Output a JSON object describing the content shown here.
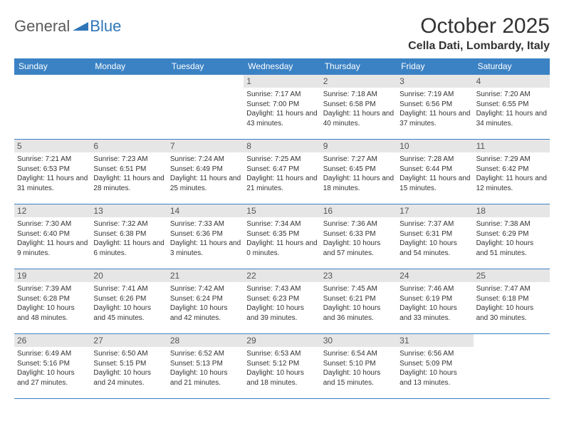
{
  "logo": {
    "text1": "General",
    "text2": "Blue",
    "accent_color": "#2f76b8",
    "text_color": "#5a5a5a"
  },
  "title": "October 2025",
  "location": "Cella Dati, Lombardy, Italy",
  "header_bg": "#3b82c4",
  "header_fg": "#ffffff",
  "daynum_bg": "#e6e6e6",
  "grid_line_color": "#3b82c4",
  "days_of_week": [
    "Sunday",
    "Monday",
    "Tuesday",
    "Wednesday",
    "Thursday",
    "Friday",
    "Saturday"
  ],
  "weeks": [
    [
      {
        "day": "",
        "sunrise": "",
        "sunset": "",
        "daylight": ""
      },
      {
        "day": "",
        "sunrise": "",
        "sunset": "",
        "daylight": ""
      },
      {
        "day": "",
        "sunrise": "",
        "sunset": "",
        "daylight": ""
      },
      {
        "day": "1",
        "sunrise": "Sunrise: 7:17 AM",
        "sunset": "Sunset: 7:00 PM",
        "daylight": "Daylight: 11 hours and 43 minutes."
      },
      {
        "day": "2",
        "sunrise": "Sunrise: 7:18 AM",
        "sunset": "Sunset: 6:58 PM",
        "daylight": "Daylight: 11 hours and 40 minutes."
      },
      {
        "day": "3",
        "sunrise": "Sunrise: 7:19 AM",
        "sunset": "Sunset: 6:56 PM",
        "daylight": "Daylight: 11 hours and 37 minutes."
      },
      {
        "day": "4",
        "sunrise": "Sunrise: 7:20 AM",
        "sunset": "Sunset: 6:55 PM",
        "daylight": "Daylight: 11 hours and 34 minutes."
      }
    ],
    [
      {
        "day": "5",
        "sunrise": "Sunrise: 7:21 AM",
        "sunset": "Sunset: 6:53 PM",
        "daylight": "Daylight: 11 hours and 31 minutes."
      },
      {
        "day": "6",
        "sunrise": "Sunrise: 7:23 AM",
        "sunset": "Sunset: 6:51 PM",
        "daylight": "Daylight: 11 hours and 28 minutes."
      },
      {
        "day": "7",
        "sunrise": "Sunrise: 7:24 AM",
        "sunset": "Sunset: 6:49 PM",
        "daylight": "Daylight: 11 hours and 25 minutes."
      },
      {
        "day": "8",
        "sunrise": "Sunrise: 7:25 AM",
        "sunset": "Sunset: 6:47 PM",
        "daylight": "Daylight: 11 hours and 21 minutes."
      },
      {
        "day": "9",
        "sunrise": "Sunrise: 7:27 AM",
        "sunset": "Sunset: 6:45 PM",
        "daylight": "Daylight: 11 hours and 18 minutes."
      },
      {
        "day": "10",
        "sunrise": "Sunrise: 7:28 AM",
        "sunset": "Sunset: 6:44 PM",
        "daylight": "Daylight: 11 hours and 15 minutes."
      },
      {
        "day": "11",
        "sunrise": "Sunrise: 7:29 AM",
        "sunset": "Sunset: 6:42 PM",
        "daylight": "Daylight: 11 hours and 12 minutes."
      }
    ],
    [
      {
        "day": "12",
        "sunrise": "Sunrise: 7:30 AM",
        "sunset": "Sunset: 6:40 PM",
        "daylight": "Daylight: 11 hours and 9 minutes."
      },
      {
        "day": "13",
        "sunrise": "Sunrise: 7:32 AM",
        "sunset": "Sunset: 6:38 PM",
        "daylight": "Daylight: 11 hours and 6 minutes."
      },
      {
        "day": "14",
        "sunrise": "Sunrise: 7:33 AM",
        "sunset": "Sunset: 6:36 PM",
        "daylight": "Daylight: 11 hours and 3 minutes."
      },
      {
        "day": "15",
        "sunrise": "Sunrise: 7:34 AM",
        "sunset": "Sunset: 6:35 PM",
        "daylight": "Daylight: 11 hours and 0 minutes."
      },
      {
        "day": "16",
        "sunrise": "Sunrise: 7:36 AM",
        "sunset": "Sunset: 6:33 PM",
        "daylight": "Daylight: 10 hours and 57 minutes."
      },
      {
        "day": "17",
        "sunrise": "Sunrise: 7:37 AM",
        "sunset": "Sunset: 6:31 PM",
        "daylight": "Daylight: 10 hours and 54 minutes."
      },
      {
        "day": "18",
        "sunrise": "Sunrise: 7:38 AM",
        "sunset": "Sunset: 6:29 PM",
        "daylight": "Daylight: 10 hours and 51 minutes."
      }
    ],
    [
      {
        "day": "19",
        "sunrise": "Sunrise: 7:39 AM",
        "sunset": "Sunset: 6:28 PM",
        "daylight": "Daylight: 10 hours and 48 minutes."
      },
      {
        "day": "20",
        "sunrise": "Sunrise: 7:41 AM",
        "sunset": "Sunset: 6:26 PM",
        "daylight": "Daylight: 10 hours and 45 minutes."
      },
      {
        "day": "21",
        "sunrise": "Sunrise: 7:42 AM",
        "sunset": "Sunset: 6:24 PM",
        "daylight": "Daylight: 10 hours and 42 minutes."
      },
      {
        "day": "22",
        "sunrise": "Sunrise: 7:43 AM",
        "sunset": "Sunset: 6:23 PM",
        "daylight": "Daylight: 10 hours and 39 minutes."
      },
      {
        "day": "23",
        "sunrise": "Sunrise: 7:45 AM",
        "sunset": "Sunset: 6:21 PM",
        "daylight": "Daylight: 10 hours and 36 minutes."
      },
      {
        "day": "24",
        "sunrise": "Sunrise: 7:46 AM",
        "sunset": "Sunset: 6:19 PM",
        "daylight": "Daylight: 10 hours and 33 minutes."
      },
      {
        "day": "25",
        "sunrise": "Sunrise: 7:47 AM",
        "sunset": "Sunset: 6:18 PM",
        "daylight": "Daylight: 10 hours and 30 minutes."
      }
    ],
    [
      {
        "day": "26",
        "sunrise": "Sunrise: 6:49 AM",
        "sunset": "Sunset: 5:16 PM",
        "daylight": "Daylight: 10 hours and 27 minutes."
      },
      {
        "day": "27",
        "sunrise": "Sunrise: 6:50 AM",
        "sunset": "Sunset: 5:15 PM",
        "daylight": "Daylight: 10 hours and 24 minutes."
      },
      {
        "day": "28",
        "sunrise": "Sunrise: 6:52 AM",
        "sunset": "Sunset: 5:13 PM",
        "daylight": "Daylight: 10 hours and 21 minutes."
      },
      {
        "day": "29",
        "sunrise": "Sunrise: 6:53 AM",
        "sunset": "Sunset: 5:12 PM",
        "daylight": "Daylight: 10 hours and 18 minutes."
      },
      {
        "day": "30",
        "sunrise": "Sunrise: 6:54 AM",
        "sunset": "Sunset: 5:10 PM",
        "daylight": "Daylight: 10 hours and 15 minutes."
      },
      {
        "day": "31",
        "sunrise": "Sunrise: 6:56 AM",
        "sunset": "Sunset: 5:09 PM",
        "daylight": "Daylight: 10 hours and 13 minutes."
      },
      {
        "day": "",
        "sunrise": "",
        "sunset": "",
        "daylight": ""
      }
    ]
  ]
}
